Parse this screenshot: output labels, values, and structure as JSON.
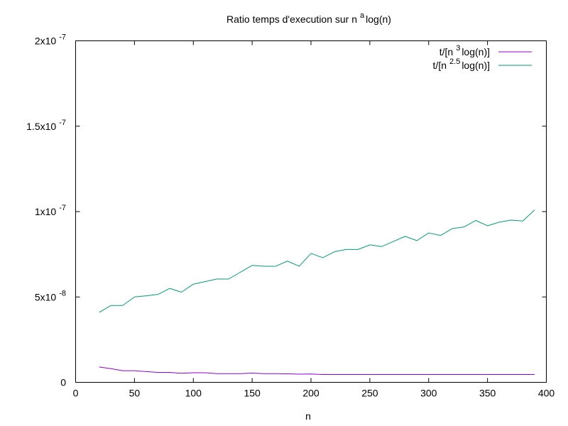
{
  "chart_data": {
    "type": "line",
    "title": {
      "pre": "Ratio temps d'execution sur n",
      "sup": "a",
      "post": "log(n)"
    },
    "xlabel": "n",
    "ylabel": "",
    "xlim": [
      0,
      400
    ],
    "ylim": [
      0,
      2e-07
    ],
    "grid": false,
    "legend_position": "top-right",
    "x_ticks": [
      {
        "value": 0,
        "label": "0"
      },
      {
        "value": 50,
        "label": "50"
      },
      {
        "value": 100,
        "label": "100"
      },
      {
        "value": 150,
        "label": "150"
      },
      {
        "value": 200,
        "label": "200"
      },
      {
        "value": 250,
        "label": "250"
      },
      {
        "value": 300,
        "label": "300"
      },
      {
        "value": 350,
        "label": "350"
      },
      {
        "value": 400,
        "label": "400"
      }
    ],
    "y_ticks": [
      {
        "value": 0,
        "base": "0",
        "exp": ""
      },
      {
        "value": 5e-08,
        "base": "5x10",
        "exp": "-8"
      },
      {
        "value": 1e-07,
        "base": "1x10",
        "exp": "-7"
      },
      {
        "value": 1.5e-07,
        "base": "1.5x10",
        "exp": "-7"
      },
      {
        "value": 2e-07,
        "base": "2x10",
        "exp": "-7"
      }
    ],
    "x": [
      20,
      30,
      40,
      50,
      60,
      70,
      80,
      90,
      100,
      110,
      120,
      130,
      140,
      150,
      160,
      170,
      180,
      190,
      200,
      210,
      220,
      230,
      240,
      250,
      260,
      270,
      280,
      290,
      300,
      310,
      320,
      330,
      340,
      350,
      360,
      370,
      380,
      390
    ],
    "series": [
      {
        "legend": {
          "pre": "t/[n",
          "sup": "3",
          "post": "log(n)]"
        },
        "color": "#9400d3",
        "values": [
          9e-09,
          8e-09,
          6.8e-09,
          6.8e-09,
          6.3e-09,
          5.8e-09,
          5.8e-09,
          5.3e-09,
          5.6e-09,
          5.6e-09,
          5.1e-09,
          5.1e-09,
          5.1e-09,
          5.4e-09,
          5.1e-09,
          5.1e-09,
          5e-09,
          4.8e-09,
          4.9e-09,
          4.6e-09,
          4.6e-09,
          4.6e-09,
          4.6e-09,
          4.6e-09,
          4.6e-09,
          4.6e-09,
          4.6e-09,
          4.6e-09,
          4.6e-09,
          4.6e-09,
          4.6e-09,
          4.6e-09,
          4.6e-09,
          4.6e-09,
          4.6e-09,
          4.6e-09,
          4.6e-09,
          4.6e-09
        ]
      },
      {
        "legend": {
          "pre": "t/[n",
          "sup": "2.5",
          "post": "log(n)]"
        },
        "color": "#009e73",
        "values": [
          4.1e-08,
          4.5e-08,
          4.5e-08,
          5e-08,
          5.07e-08,
          5.15e-08,
          5.5e-08,
          5.28e-08,
          5.75e-08,
          5.9e-08,
          6.05e-08,
          6.05e-08,
          6.45e-08,
          6.85e-08,
          6.8e-08,
          6.8e-08,
          7.1e-08,
          6.8e-08,
          7.55e-08,
          7.3e-08,
          7.65e-08,
          7.78e-08,
          7.78e-08,
          8.05e-08,
          7.95e-08,
          8.25e-08,
          8.55e-08,
          8.3e-08,
          8.75e-08,
          8.6e-08,
          9e-08,
          9.1e-08,
          9.48e-08,
          9.17e-08,
          9.38e-08,
          9.5e-08,
          9.45e-08,
          1.01e-07
        ]
      }
    ]
  }
}
